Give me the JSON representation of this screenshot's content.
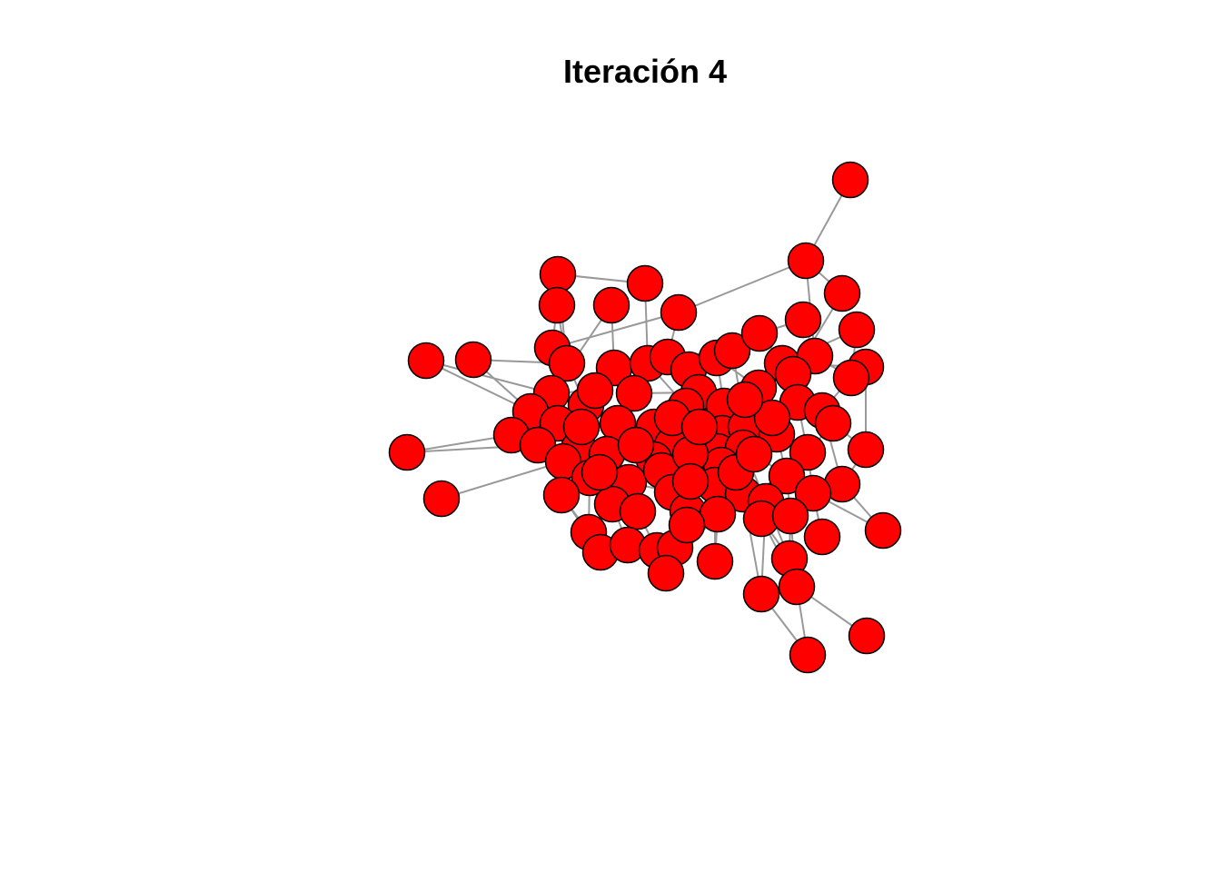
{
  "title": "Iteración 4",
  "colors": {
    "node_fill": "#ff0000",
    "node_stroke": "#000000",
    "edge": "#999999",
    "background": "#ffffff"
  }
}
